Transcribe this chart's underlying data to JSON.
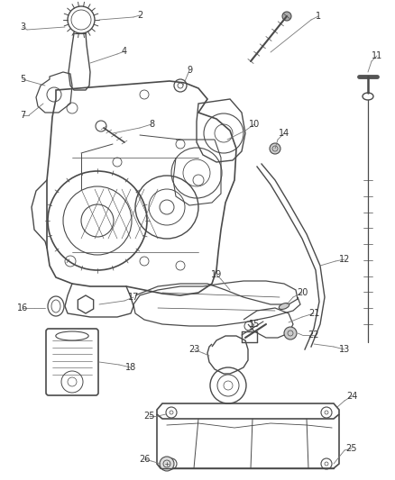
{
  "bg_color": "#ffffff",
  "line_color": "#4a4a4a",
  "label_color": "#333333",
  "figsize": [
    4.38,
    5.33
  ],
  "dpi": 100,
  "label_fs": 7.0
}
